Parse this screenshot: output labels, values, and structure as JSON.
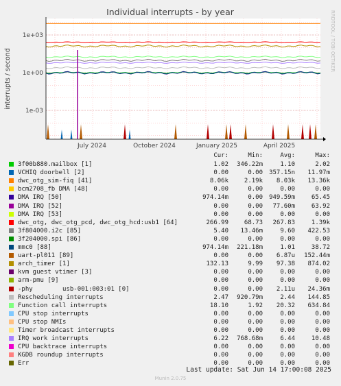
{
  "chart_data": {
    "type": "line",
    "title": "Individual interrupts - by year",
    "ylabel": "interrupts / second",
    "yscale": "log",
    "y_ticks": [
      "1e+03",
      "1e+00",
      "1e-03"
    ],
    "x_ticks": [
      "July 2024",
      "October 2024",
      "January 2025",
      "April 2025"
    ],
    "watermark": "RRDTOOL / TOBI OETIKER",
    "grid": true,
    "series": [
      {
        "name": "3f00b880.mailbox [1]",
        "color": "#00cc00",
        "cur": "1.02",
        "min": "346.22m",
        "avg": "1.10",
        "max": "2.02"
      },
      {
        "name": "VCHIQ doorbell [2]",
        "color": "#0066b3",
        "cur": "0.00",
        "min": "0.00",
        "avg": "357.15n",
        "max": "11.97m"
      },
      {
        "name": "dwc_otg_sim-fiq [41]",
        "color": "#ff8000",
        "cur": "8.06k",
        "min": "2.19k",
        "avg": "8.03k",
        "max": "13.36k"
      },
      {
        "name": "bcm2708_fb DMA [48]",
        "color": "#ffcc00",
        "cur": "0.00",
        "min": "0.00",
        "avg": "0.00",
        "max": "0.00"
      },
      {
        "name": "DMA IRQ [50]",
        "color": "#330099",
        "cur": "974.14m",
        "min": "0.00",
        "avg": "949.59m",
        "max": "65.45"
      },
      {
        "name": "DMA IRQ [52]",
        "color": "#990099",
        "cur": "0.00",
        "min": "0.00",
        "avg": "77.60m",
        "max": "63.92"
      },
      {
        "name": "DMA IRQ [53]",
        "color": "#ccff00",
        "cur": "0.00",
        "min": "0.00",
        "avg": "0.00",
        "max": "0.00"
      },
      {
        "name": "dwc_otg, dwc_otg_pcd, dwc_otg_hcd:usb1 [64]",
        "color": "#ff0000",
        "cur": "266.99",
        "min": "68.73",
        "avg": "267.83",
        "max": "1.39k"
      },
      {
        "name": "3f804000.i2c [85]",
        "color": "#808080",
        "cur": "5.40",
        "min": "13.46m",
        "avg": "9.60",
        "max": "422.53"
      },
      {
        "name": "3f204000.spi [86]",
        "color": "#008f00",
        "cur": "0.00",
        "min": "0.00",
        "avg": "0.00",
        "max": "0.00"
      },
      {
        "name": "mmc0 [88]",
        "color": "#00487d",
        "cur": "974.14m",
        "min": "221.18m",
        "avg": "1.01",
        "max": "38.72"
      },
      {
        "name": "uart-pl011 [89]",
        "color": "#b35a00",
        "cur": "0.00",
        "min": "0.00",
        "avg": "6.87u",
        "max": "152.44m"
      },
      {
        "name": "arch_timer [1]",
        "color": "#b38f00",
        "cur": "132.13",
        "min": "9.99",
        "avg": "97.38",
        "max": "874.02"
      },
      {
        "name": "kvm guest vtimer [3]",
        "color": "#6b006b",
        "cur": "0.00",
        "min": "0.00",
        "avg": "0.00",
        "max": "0.00"
      },
      {
        "name": "arm-pmu [9]",
        "color": "#8fb300",
        "cur": "0.00",
        "min": "0.00",
        "avg": "0.00",
        "max": "0.00"
      },
      {
        "name": "-phy        usb-001:003:01 [0]",
        "color": "#b30000",
        "cur": "0.00",
        "min": "0.00",
        "avg": "2.11u",
        "max": "24.36m"
      },
      {
        "name": "Rescheduling interrupts",
        "color": "#bebebe",
        "cur": "2.47",
        "min": "920.79m",
        "avg": "2.44",
        "max": "144.85"
      },
      {
        "name": "Function call interrupts",
        "color": "#80ff80",
        "cur": "18.10",
        "min": "1.92",
        "avg": "20.32",
        "max": "634.84"
      },
      {
        "name": "CPU stop interrupts",
        "color": "#80c9ff",
        "cur": "0.00",
        "min": "0.00",
        "avg": "0.00",
        "max": "0.00"
      },
      {
        "name": "CPU stop NMIs",
        "color": "#ffc080",
        "cur": "0.00",
        "min": "0.00",
        "avg": "0.00",
        "max": "0.00"
      },
      {
        "name": "Timer broadcast interrupts",
        "color": "#ffe680",
        "cur": "0.00",
        "min": "0.00",
        "avg": "0.00",
        "max": "0.00"
      },
      {
        "name": "IRQ work interrupts",
        "color": "#aa80ff",
        "cur": "6.22",
        "min": "768.68m",
        "avg": "6.44",
        "max": "10.48"
      },
      {
        "name": "CPU backtrace interrupts",
        "color": "#ee00cc",
        "cur": "0.00",
        "min": "0.00",
        "avg": "0.00",
        "max": "0.00"
      },
      {
        "name": "KGDB roundup interrupts",
        "color": "#ff8080",
        "cur": "0.00",
        "min": "0.00",
        "avg": "0.00",
        "max": "0.00"
      },
      {
        "name": "Err",
        "color": "#666600",
        "cur": "0.00",
        "min": "0.00",
        "avg": "0.00",
        "max": "0.00"
      }
    ]
  },
  "legend_header": {
    "cur": "Cur:",
    "min": "Min:",
    "avg": "Avg:",
    "max": "Max:"
  },
  "footer": {
    "last_update": "Last update: Sat Jun 14 17:00:08 2025",
    "version": "Munin 2.0.75"
  }
}
